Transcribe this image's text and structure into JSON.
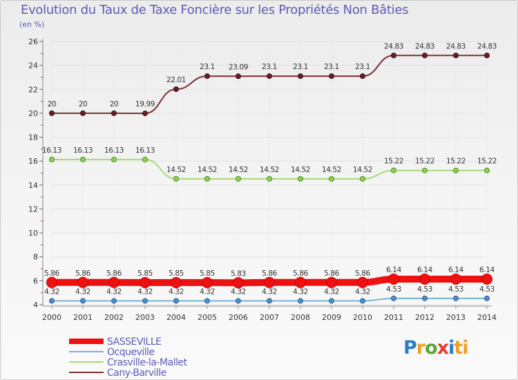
{
  "chart_data": {
    "type": "line",
    "title": "Evolution du Taux de Taxe Foncière sur les Propriétés Non Bâties",
    "subtitle": "(en %)",
    "xlabel": "",
    "ylabel": "",
    "ylim": [
      4,
      26
    ],
    "yticks": [
      "4",
      "6",
      "8",
      "10",
      "12",
      "14",
      "16",
      "18",
      "20",
      "22",
      "24",
      "26"
    ],
    "categories": [
      "2000",
      "2001",
      "2002",
      "2003",
      "2004",
      "2005",
      "2006",
      "2007",
      "2008",
      "2009",
      "2010",
      "2011",
      "2012",
      "2013",
      "2014"
    ],
    "series": [
      {
        "name": "SASSEVILLE",
        "color": "#ee1111",
        "values": [
          5.86,
          5.86,
          5.86,
          5.85,
          5.85,
          5.85,
          5.83,
          5.86,
          5.86,
          5.86,
          5.86,
          6.14,
          6.14,
          6.14,
          6.14
        ],
        "labels": [
          "5.86",
          "5.86",
          "5.86",
          "5.85",
          "5.85",
          "5.85",
          "5.83",
          "5.86",
          "5.86",
          "5.86",
          "5.86",
          "6.14",
          "6.14",
          "6.14",
          "6.14"
        ]
      },
      {
        "name": "Ocqueville",
        "color": "#7ab0d8",
        "values": [
          4.32,
          4.32,
          4.32,
          4.32,
          4.32,
          4.32,
          4.32,
          4.32,
          4.32,
          4.32,
          4.32,
          4.53,
          4.53,
          4.53,
          4.53
        ],
        "labels": [
          "4.32",
          "4.32",
          "4.32",
          "4.32",
          "4.32",
          "4.32",
          "4.32",
          "4.32",
          "4.32",
          "4.32",
          "4.32",
          "4.53",
          "4.53",
          "4.53",
          "4.53"
        ]
      },
      {
        "name": "Crasville-la-Mallet",
        "color": "#a8d878",
        "values": [
          16.13,
          16.13,
          16.13,
          16.13,
          14.52,
          14.52,
          14.52,
          14.52,
          14.52,
          14.52,
          14.52,
          15.22,
          15.22,
          15.22,
          15.22
        ],
        "labels": [
          "16.13",
          "16.13",
          "16.13",
          "16.13",
          "14.52",
          "14.52",
          "14.52",
          "14.52",
          "14.52",
          "14.52",
          "14.52",
          "15.22",
          "15.22",
          "15.22",
          "15.22"
        ]
      },
      {
        "name": "Cany-Barville",
        "color": "#7a2d36",
        "values": [
          20,
          20,
          20,
          19.99,
          22.01,
          23.1,
          23.09,
          23.1,
          23.1,
          23.1,
          23.1,
          24.83,
          24.83,
          24.83,
          24.83
        ],
        "labels": [
          "20",
          "20",
          "20",
          "19.99",
          "22.01",
          "23.1",
          "23.09",
          "23.1",
          "23.1",
          "23.1",
          "23.1",
          "24.83",
          "24.83",
          "24.83",
          "24.83"
        ]
      }
    ],
    "legend_position": "bottom-left"
  },
  "branding": {
    "logo_letters": [
      "P",
      "r",
      "o",
      "x",
      "i",
      "ti"
    ]
  }
}
